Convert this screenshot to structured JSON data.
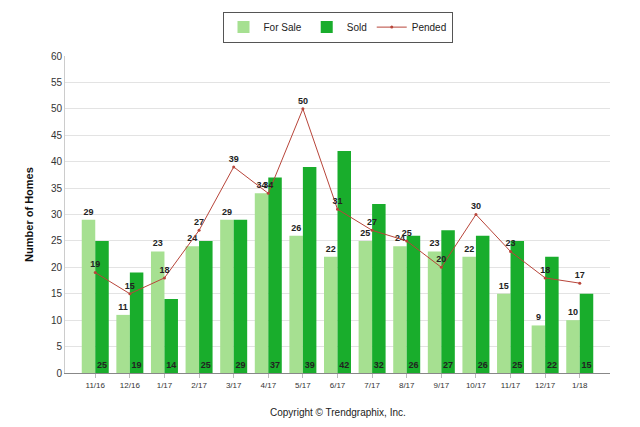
{
  "chart_data": {
    "type": "bar",
    "categories": [
      "11/16",
      "12/16",
      "1/17",
      "2/17",
      "3/17",
      "4/17",
      "5/17",
      "6/17",
      "7/17",
      "8/17",
      "9/17",
      "10/17",
      "11/17",
      "12/17",
      "1/18"
    ],
    "series": [
      {
        "name": "For Sale",
        "type": "bar",
        "color": "#a6e091",
        "values": [
          29,
          11,
          23,
          24,
          29,
          34,
          26,
          22,
          25,
          24,
          23,
          22,
          15,
          9,
          10
        ]
      },
      {
        "name": "Sold",
        "type": "bar",
        "color": "#19ad2c",
        "values": [
          25,
          19,
          14,
          25,
          29,
          37,
          39,
          42,
          32,
          26,
          27,
          26,
          25,
          22,
          15
        ]
      },
      {
        "name": "Pended",
        "type": "line",
        "color": "#b8453a",
        "marker": "circle",
        "line_style": "solid",
        "values": [
          19,
          15,
          18,
          27,
          39,
          34,
          50,
          31,
          27,
          25,
          20,
          30,
          23,
          18,
          17
        ]
      }
    ],
    "y_label": "Number of Homes",
    "annotations": [
      "Copyright © Trendgraphix, Inc."
    ],
    "ylim": [
      0,
      60
    ],
    "yticks": [
      0,
      5,
      10,
      15,
      20,
      25,
      30,
      35,
      40,
      45,
      50,
      55,
      60
    ],
    "grid": true,
    "legend": "top",
    "data_labels": true
  }
}
